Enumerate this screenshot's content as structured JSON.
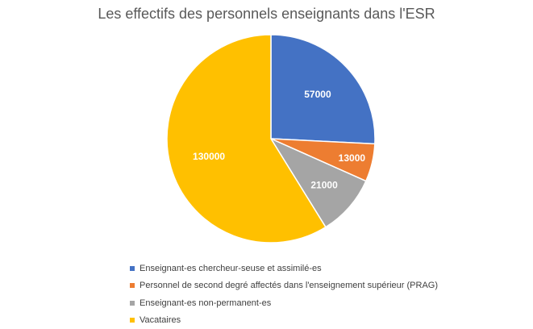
{
  "chart_data": {
    "type": "pie",
    "title": "Les effectifs des personnels enseignants dans l'ESR",
    "categories": [
      "Enseignant-es chercheur-seuse et assimilé-es",
      "Personnel de second degré affectés dans l'enseignement supérieur (PRAG)",
      "Enseignant-es non-permanent-es",
      "Vacataires"
    ],
    "values": [
      57000,
      13000,
      21000,
      130000
    ],
    "data_labels": [
      "57000",
      "13000",
      "21000",
      "130000"
    ],
    "colors": [
      "#4472C4",
      "#ED7D31",
      "#A5A5A5",
      "#FFC000"
    ],
    "start": "12 o'clock, clockwise",
    "legend_position": "bottom"
  }
}
